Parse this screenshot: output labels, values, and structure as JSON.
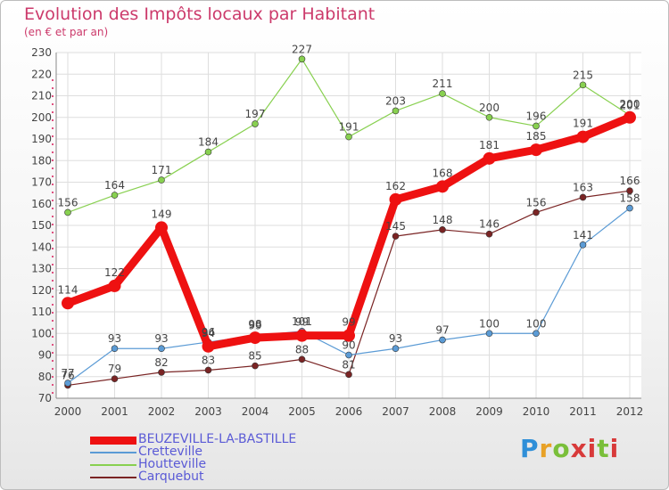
{
  "chart_data": {
    "type": "line",
    "title": "Evolution des Impôts locaux par Habitant",
    "subtitle": "(en € et par an)",
    "xlabel": "",
    "ylabel": "",
    "x": [
      2000,
      2001,
      2002,
      2003,
      2004,
      2005,
      2006,
      2007,
      2008,
      2009,
      2010,
      2011,
      2012
    ],
    "ylim": [
      70,
      230
    ],
    "yticks": [
      70,
      80,
      90,
      100,
      110,
      120,
      130,
      140,
      150,
      160,
      170,
      180,
      190,
      200,
      210,
      220,
      230
    ],
    "grid": "horizontal",
    "legend_position": "bottom-left",
    "series": [
      {
        "name": "BEUZEVILLE-LA-BASTILLE",
        "color": "#ee1111",
        "values": [
          114,
          122,
          149,
          94,
          98,
          99,
          99,
          162,
          168,
          181,
          185,
          191,
          200
        ],
        "labels": [
          "114",
          "122",
          "149",
          "94",
          "98",
          "99",
          "99",
          "162",
          "168",
          "181",
          "185",
          "191",
          "200"
        ]
      },
      {
        "name": "Cretteville",
        "color": "#5b9bd5",
        "values": [
          77,
          93,
          93,
          96,
          99,
          101,
          90,
          93,
          97,
          100,
          100,
          141,
          158
        ],
        "labels": [
          "77",
          "93",
          "93",
          "96",
          "99",
          "101",
          "90",
          "93",
          "97",
          "100",
          "100",
          "141",
          "158"
        ]
      },
      {
        "name": "Houtteville",
        "color": "#88d050",
        "values": [
          156,
          164,
          171,
          184,
          197,
          227,
          191,
          203,
          211,
          200,
          196,
          215,
          201
        ],
        "labels": [
          "156",
          "164",
          "171",
          "184",
          "197",
          "227",
          "191",
          "203",
          "211",
          "200",
          "196",
          "215",
          "201"
        ]
      },
      {
        "name": "Carquebut",
        "color": "#7a2424",
        "values": [
          76,
          79,
          82,
          83,
          85,
          88,
          81,
          145,
          148,
          146,
          156,
          163,
          166
        ],
        "labels": [
          "76",
          "79",
          "82",
          "83",
          "85",
          "88",
          "81",
          "145",
          "148",
          "146",
          "156",
          "163",
          "166"
        ]
      }
    ]
  },
  "logo": {
    "text": "Proxiti"
  }
}
